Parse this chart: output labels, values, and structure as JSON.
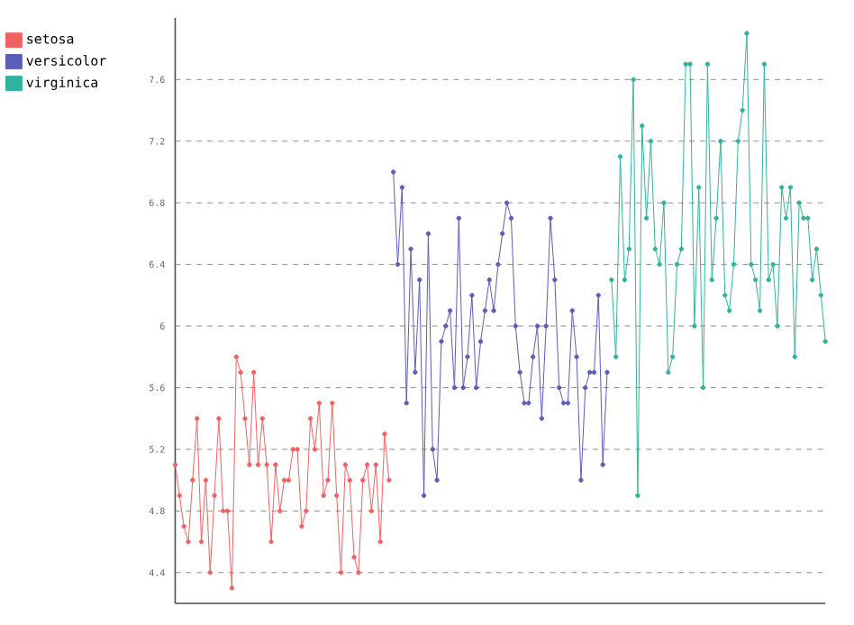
{
  "chart_data": {
    "type": "line",
    "categories": [
      null,
      null,
      null,
      null,
      null,
      null,
      null,
      null,
      null,
      null,
      null,
      null,
      null,
      null,
      null,
      null,
      null,
      null,
      null,
      null,
      null,
      null,
      null,
      null,
      null,
      null,
      null,
      null,
      null,
      null,
      null,
      null,
      null,
      null,
      null,
      null,
      null,
      null,
      null,
      null,
      null,
      null,
      null,
      null,
      null,
      null,
      null,
      null,
      null,
      null,
      null,
      null,
      null,
      null,
      null,
      null,
      null,
      null,
      null,
      null,
      null,
      null,
      null,
      null,
      null,
      null,
      null,
      null,
      null,
      null,
      null,
      null,
      null,
      null,
      null,
      null,
      null,
      null,
      null,
      null,
      null,
      null,
      null,
      null,
      null,
      null,
      null,
      null,
      null,
      null,
      null,
      null,
      null,
      null,
      null,
      null,
      null,
      null,
      null,
      null,
      null,
      null,
      null,
      null,
      null,
      null,
      null,
      null,
      null,
      null,
      null,
      null,
      null,
      null,
      null,
      null,
      null,
      null,
      null,
      null,
      null,
      null,
      null,
      null,
      null,
      null,
      null,
      null,
      null,
      null,
      null,
      null,
      null,
      null,
      null,
      null,
      null,
      null,
      null,
      null,
      null,
      null,
      null,
      null,
      null,
      null,
      null,
      null,
      null,
      null
    ],
    "series": [
      {
        "name": "setosa",
        "color": "#f06262",
        "values": [
          5.1,
          4.9,
          4.7,
          4.6,
          5.0,
          5.4,
          4.6,
          5.0,
          4.4,
          4.9,
          5.4,
          4.8,
          4.8,
          4.3,
          5.8,
          5.7,
          5.4,
          5.1,
          5.7,
          5.1,
          5.4,
          5.1,
          4.6,
          5.1,
          4.8,
          5.0,
          5.0,
          5.2,
          5.2,
          4.7,
          4.8,
          5.4,
          5.2,
          5.5,
          4.9,
          5.0,
          5.5,
          4.9,
          4.4,
          5.1,
          5.0,
          4.5,
          4.4,
          5.0,
          5.1,
          4.8,
          5.1,
          4.6,
          5.3,
          5.0,
          null,
          null,
          null,
          null,
          null,
          null,
          null,
          null,
          null,
          null,
          null,
          null,
          null,
          null,
          null,
          null,
          null,
          null,
          null,
          null,
          null,
          null,
          null,
          null,
          null,
          null,
          null,
          null,
          null,
          null,
          null,
          null,
          null,
          null,
          null,
          null,
          null,
          null,
          null,
          null,
          null,
          null,
          null,
          null,
          null,
          null,
          null,
          null,
          null,
          null,
          null,
          null,
          null,
          null,
          null,
          null,
          null,
          null,
          null,
          null,
          null,
          null,
          null,
          null,
          null,
          null,
          null,
          null,
          null,
          null,
          null,
          null,
          null,
          null,
          null,
          null,
          null,
          null,
          null,
          null,
          null,
          null,
          null,
          null,
          null,
          null,
          null,
          null,
          null,
          null,
          null,
          null,
          null,
          null,
          null,
          null,
          null,
          null,
          null,
          null
        ]
      },
      {
        "name": "versicolor",
        "color": "#5b5db8",
        "values": [
          null,
          null,
          null,
          null,
          null,
          null,
          null,
          null,
          null,
          null,
          null,
          null,
          null,
          null,
          null,
          null,
          null,
          null,
          null,
          null,
          null,
          null,
          null,
          null,
          null,
          null,
          null,
          null,
          null,
          null,
          null,
          null,
          null,
          null,
          null,
          null,
          null,
          null,
          null,
          null,
          null,
          null,
          null,
          null,
          null,
          null,
          null,
          null,
          null,
          null,
          7.0,
          6.4,
          6.9,
          5.5,
          6.5,
          5.7,
          6.3,
          4.9,
          6.6,
          5.2,
          5.0,
          5.9,
          6.0,
          6.1,
          5.6,
          6.7,
          5.6,
          5.8,
          6.2,
          5.6,
          5.9,
          6.1,
          6.3,
          6.1,
          6.4,
          6.6,
          6.8,
          6.7,
          6.0,
          5.7,
          5.5,
          5.5,
          5.8,
          6.0,
          5.4,
          6.0,
          6.7,
          6.3,
          5.6,
          5.5,
          5.5,
          6.1,
          5.8,
          5.0,
          5.6,
          5.7,
          5.7,
          6.2,
          5.1,
          5.7,
          null,
          null,
          null,
          null,
          null,
          null,
          null,
          null,
          null,
          null,
          null,
          null,
          null,
          null,
          null,
          null,
          null,
          null,
          null,
          null,
          null,
          null,
          null,
          null,
          null,
          null,
          null,
          null,
          null,
          null,
          null,
          null,
          null,
          null,
          null,
          null,
          null,
          null,
          null,
          null,
          null,
          null,
          null,
          null,
          null,
          null,
          null,
          null,
          null,
          null
        ]
      },
      {
        "name": "virginica",
        "color": "#2fb39d",
        "values": [
          null,
          null,
          null,
          null,
          null,
          null,
          null,
          null,
          null,
          null,
          null,
          null,
          null,
          null,
          null,
          null,
          null,
          null,
          null,
          null,
          null,
          null,
          null,
          null,
          null,
          null,
          null,
          null,
          null,
          null,
          null,
          null,
          null,
          null,
          null,
          null,
          null,
          null,
          null,
          null,
          null,
          null,
          null,
          null,
          null,
          null,
          null,
          null,
          null,
          null,
          null,
          null,
          null,
          null,
          null,
          null,
          null,
          null,
          null,
          null,
          null,
          null,
          null,
          null,
          null,
          null,
          null,
          null,
          null,
          null,
          null,
          null,
          null,
          null,
          null,
          null,
          null,
          null,
          null,
          null,
          null,
          null,
          null,
          null,
          null,
          null,
          null,
          null,
          null,
          null,
          null,
          null,
          null,
          null,
          null,
          null,
          null,
          null,
          null,
          null,
          6.3,
          5.8,
          7.1,
          6.3,
          6.5,
          7.6,
          4.9,
          7.3,
          6.7,
          7.2,
          6.5,
          6.4,
          6.8,
          5.7,
          5.8,
          6.4,
          6.5,
          7.7,
          7.7,
          6.0,
          6.9,
          5.6,
          7.7,
          6.3,
          6.7,
          7.2,
          6.2,
          6.1,
          6.4,
          7.2,
          7.4,
          7.9,
          6.4,
          6.3,
          6.1,
          7.7,
          6.3,
          6.4,
          6.0,
          6.9,
          6.7,
          6.9,
          5.8,
          6.8,
          6.7,
          6.7,
          6.3,
          6.5,
          6.2,
          5.9
        ]
      }
    ],
    "ylim": [
      4.2,
      8.0
    ],
    "yticks": [
      4.4,
      4.8,
      5.2,
      5.6,
      6,
      6.4,
      6.8,
      7.2,
      7.6
    ],
    "grid": "y",
    "legend": "top left",
    "marker": "circle",
    "line_style": "solid"
  }
}
